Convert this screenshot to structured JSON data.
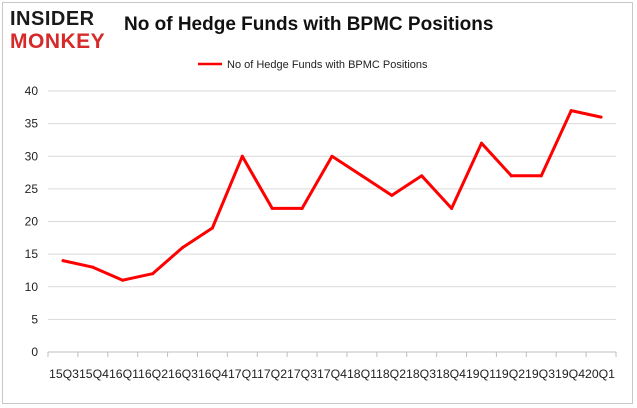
{
  "logo": {
    "top": "INSIDER",
    "bottom": "MONKEY"
  },
  "chart_data": {
    "type": "line",
    "title": "No of Hedge Funds with BPMC Positions",
    "xlabel": "",
    "ylabel": "",
    "categories": [
      "2015Q3",
      "2015Q4",
      "2016Q1",
      "2016Q2",
      "2016Q3",
      "2016Q4",
      "2017Q1",
      "2017Q2",
      "2017Q3",
      "2017Q4",
      "2018Q1",
      "2018Q2",
      "2018Q3",
      "2018Q4",
      "2019Q1",
      "2019Q2",
      "2019Q3",
      "2019Q4",
      "2020Q1"
    ],
    "x_tick_text": "15Q315Q416Q116Q216Q316Q417Q117Q217Q317Q418Q118Q218Q318Q419Q119Q219Q319Q420Q1",
    "series": [
      {
        "name": "No of Hedge Funds with BPMC Positions",
        "values": [
          14,
          13,
          11,
          12,
          16,
          19,
          30,
          22,
          22,
          30,
          27,
          24,
          27,
          22,
          32,
          27,
          27,
          37,
          36
        ]
      }
    ],
    "ylim": [
      0,
      40
    ],
    "yticks": [
      0,
      5,
      10,
      15,
      20,
      25,
      30,
      35,
      40
    ],
    "grid": true,
    "legend": "top-center",
    "color": "#ff0000"
  }
}
